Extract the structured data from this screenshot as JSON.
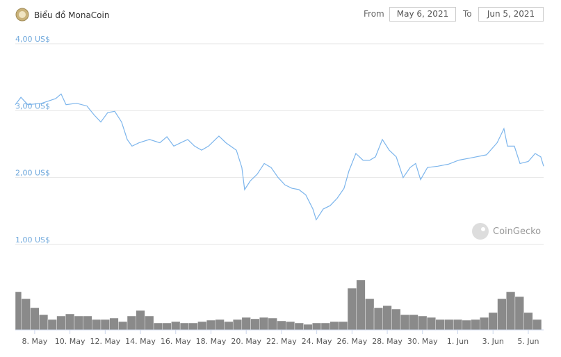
{
  "header": {
    "title": "Biểu đồ MonaCoin",
    "from_label": "From",
    "from_date": "May 6, 2021",
    "to_label": "To",
    "to_date": "Jun 5, 2021"
  },
  "watermark": "CoinGecko",
  "chart_data": [
    {
      "type": "line",
      "color": "#7cb5ec",
      "grid": true,
      "xlim": [
        6.9,
        36.87
      ],
      "xticks": [
        {
          "value": 8,
          "label": "8. May"
        },
        {
          "value": 10,
          "label": "10. May"
        },
        {
          "value": 12,
          "label": "12. May"
        },
        {
          "value": 14,
          "label": "14. May"
        },
        {
          "value": 16,
          "label": "16. May"
        },
        {
          "value": 18,
          "label": "18. May"
        },
        {
          "value": 20,
          "label": "20. May"
        },
        {
          "value": 22,
          "label": "22. May"
        },
        {
          "value": 24,
          "label": "24. May"
        },
        {
          "value": 26,
          "label": "26. May"
        },
        {
          "value": 28,
          "label": "28. May"
        },
        {
          "value": 30,
          "label": "30. May"
        },
        {
          "value": 32,
          "label": "1. Jun"
        },
        {
          "value": 34,
          "label": "3. Jun"
        },
        {
          "value": 36,
          "label": "5. Jun"
        }
      ],
      "ylim": [
        1,
        4
      ],
      "yticks": [
        {
          "value": 1,
          "label": "1,00 US$"
        },
        {
          "value": 2,
          "label": "2,00 US$"
        },
        {
          "value": 3,
          "label": "3,00 US$"
        },
        {
          "value": 4,
          "label": "4,00 US$"
        }
      ],
      "x": [
        6.9,
        7.22,
        7.61,
        8.4,
        9.19,
        9.5,
        9.78,
        10.37,
        10.96,
        11.36,
        11.75,
        12.14,
        12.54,
        12.93,
        13.25,
        13.52,
        13.92,
        14.51,
        15.1,
        15.5,
        15.89,
        16.28,
        16.68,
        17.07,
        17.47,
        17.86,
        18.45,
        18.85,
        19.44,
        19.75,
        19.91,
        20.23,
        20.62,
        21.02,
        21.41,
        21.81,
        22.2,
        22.59,
        22.99,
        23.38,
        23.78,
        23.97,
        24.37,
        24.76,
        25.16,
        25.55,
        25.83,
        26.22,
        26.62,
        27.01,
        27.33,
        27.72,
        28.11,
        28.51,
        28.71,
        28.9,
        29.3,
        29.61,
        29.89,
        30.28,
        30.87,
        31.47,
        32.06,
        32.85,
        33.63,
        34.23,
        34.62,
        34.82,
        35.21,
        35.53,
        36.0,
        36.39,
        36.71,
        36.87
      ],
      "values": [
        3.09,
        3.2,
        3.09,
        3.11,
        3.18,
        3.25,
        3.09,
        3.11,
        3.07,
        2.94,
        2.83,
        2.97,
        2.99,
        2.83,
        2.57,
        2.47,
        2.52,
        2.57,
        2.52,
        2.61,
        2.47,
        2.52,
        2.57,
        2.47,
        2.41,
        2.47,
        2.62,
        2.52,
        2.41,
        2.15,
        1.82,
        1.95,
        2.05,
        2.21,
        2.15,
        2.0,
        1.89,
        1.84,
        1.82,
        1.74,
        1.53,
        1.37,
        1.53,
        1.58,
        1.69,
        1.84,
        2.1,
        2.36,
        2.26,
        2.26,
        2.31,
        2.57,
        2.41,
        2.31,
        2.15,
        2.0,
        2.15,
        2.21,
        1.97,
        2.15,
        2.17,
        2.2,
        2.26,
        2.3,
        2.34,
        2.52,
        2.73,
        2.47,
        2.47,
        2.21,
        2.24,
        2.36,
        2.31,
        2.17
      ]
    },
    {
      "type": "bar",
      "color": "#8a8a8a",
      "ylim": [
        0,
        100
      ],
      "x": [
        7,
        7.5,
        8,
        8.5,
        9,
        9.5,
        10,
        10.5,
        11,
        11.5,
        12,
        12.5,
        13,
        13.5,
        14,
        14.5,
        15,
        15.5,
        16,
        16.5,
        17,
        17.5,
        18,
        18.5,
        19,
        19.5,
        20,
        20.5,
        21,
        21.5,
        22,
        22.5,
        23,
        23.5,
        24,
        24.5,
        25,
        25.5,
        26,
        26.5,
        27,
        27.5,
        28,
        28.5,
        29,
        29.5,
        30,
        30.5,
        31,
        31.5,
        32,
        32.5,
        33,
        33.5,
        34,
        34.5,
        35,
        35.5,
        36,
        36.5
      ],
      "values": [
        55,
        45,
        32,
        22,
        15,
        20,
        23,
        20,
        20,
        15,
        15,
        17,
        12,
        20,
        28,
        20,
        10,
        10,
        12,
        10,
        10,
        12,
        14,
        15,
        12,
        15,
        18,
        16,
        18,
        17,
        13,
        12,
        10,
        8,
        10,
        10,
        12,
        12,
        60,
        72,
        45,
        32,
        35,
        30,
        22,
        22,
        20,
        18,
        15,
        15,
        15,
        14,
        15,
        18,
        25,
        45,
        55,
        48,
        25,
        15
      ]
    }
  ]
}
